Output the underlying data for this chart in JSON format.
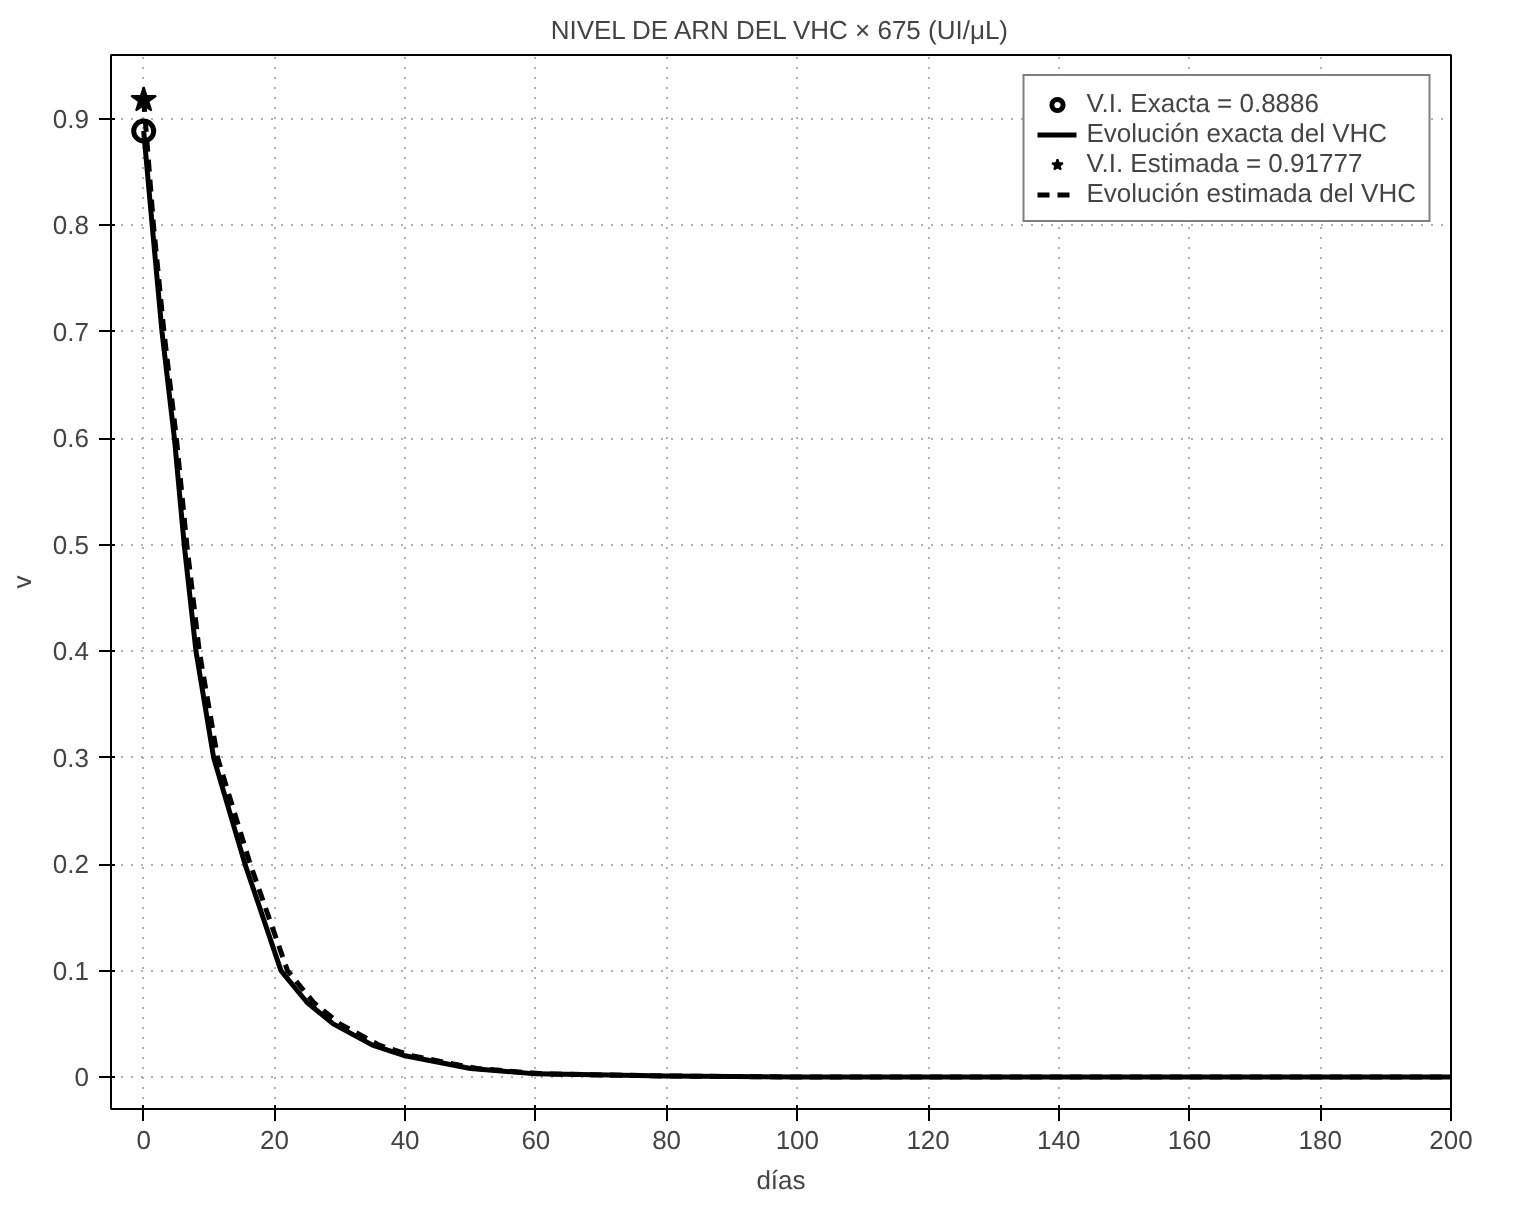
{
  "chart_data": {
    "type": "line",
    "title": "NIVEL DE ARN DEL VHC × 675 (UI/μL)",
    "xlabel": "días",
    "ylabel": "v",
    "xlim": [
      -5,
      200
    ],
    "xticks": [
      0,
      20,
      40,
      60,
      80,
      100,
      120,
      140,
      160,
      180,
      200
    ],
    "ylim": [
      -0.03,
      0.96
    ],
    "yticks": [
      0,
      0.1,
      0.2,
      0.3,
      0.4,
      0.5,
      0.6,
      0.7,
      0.8,
      0.9
    ],
    "grid": true,
    "legend": "top right",
    "series": [
      {
        "name": "V.I. Exacta = 0.8886",
        "type": "scatter",
        "marker": "circle",
        "color": "#000000",
        "x": [
          0
        ],
        "values": [
          0.8886
        ]
      },
      {
        "name": "Evolución exacta del VHC",
        "line_style": "solid",
        "color": "#000000",
        "x": [
          0,
          1.3,
          2.8,
          4.7,
          6.2,
          8,
          10.7,
          15.5,
          21,
          25,
          29,
          35,
          40,
          50,
          60,
          80,
          100,
          200
        ],
        "values": [
          0.8886,
          0.8,
          0.7,
          0.6,
          0.5,
          0.4,
          0.3,
          0.2,
          0.1,
          0.07,
          0.05,
          0.03,
          0.02,
          0.008,
          0.003,
          0.001,
          0,
          0
        ]
      },
      {
        "name": "V.I. Estimada = 0.91777",
        "type": "scatter",
        "marker": "star",
        "color": "#000000",
        "x": [
          0
        ],
        "values": [
          0.91777
        ]
      },
      {
        "name": "Evolución estimada del VHC",
        "line_style": "dashed",
        "color": "#000000",
        "x": [
          0,
          1.5,
          3.1,
          5,
          6.6,
          8.5,
          11.3,
          16.3,
          22,
          26,
          30,
          36,
          41,
          51,
          61,
          80,
          100,
          200
        ],
        "values": [
          0.91777,
          0.8,
          0.7,
          0.6,
          0.5,
          0.4,
          0.3,
          0.2,
          0.1,
          0.07,
          0.05,
          0.03,
          0.02,
          0.008,
          0.003,
          0.001,
          0,
          0
        ]
      }
    ]
  }
}
